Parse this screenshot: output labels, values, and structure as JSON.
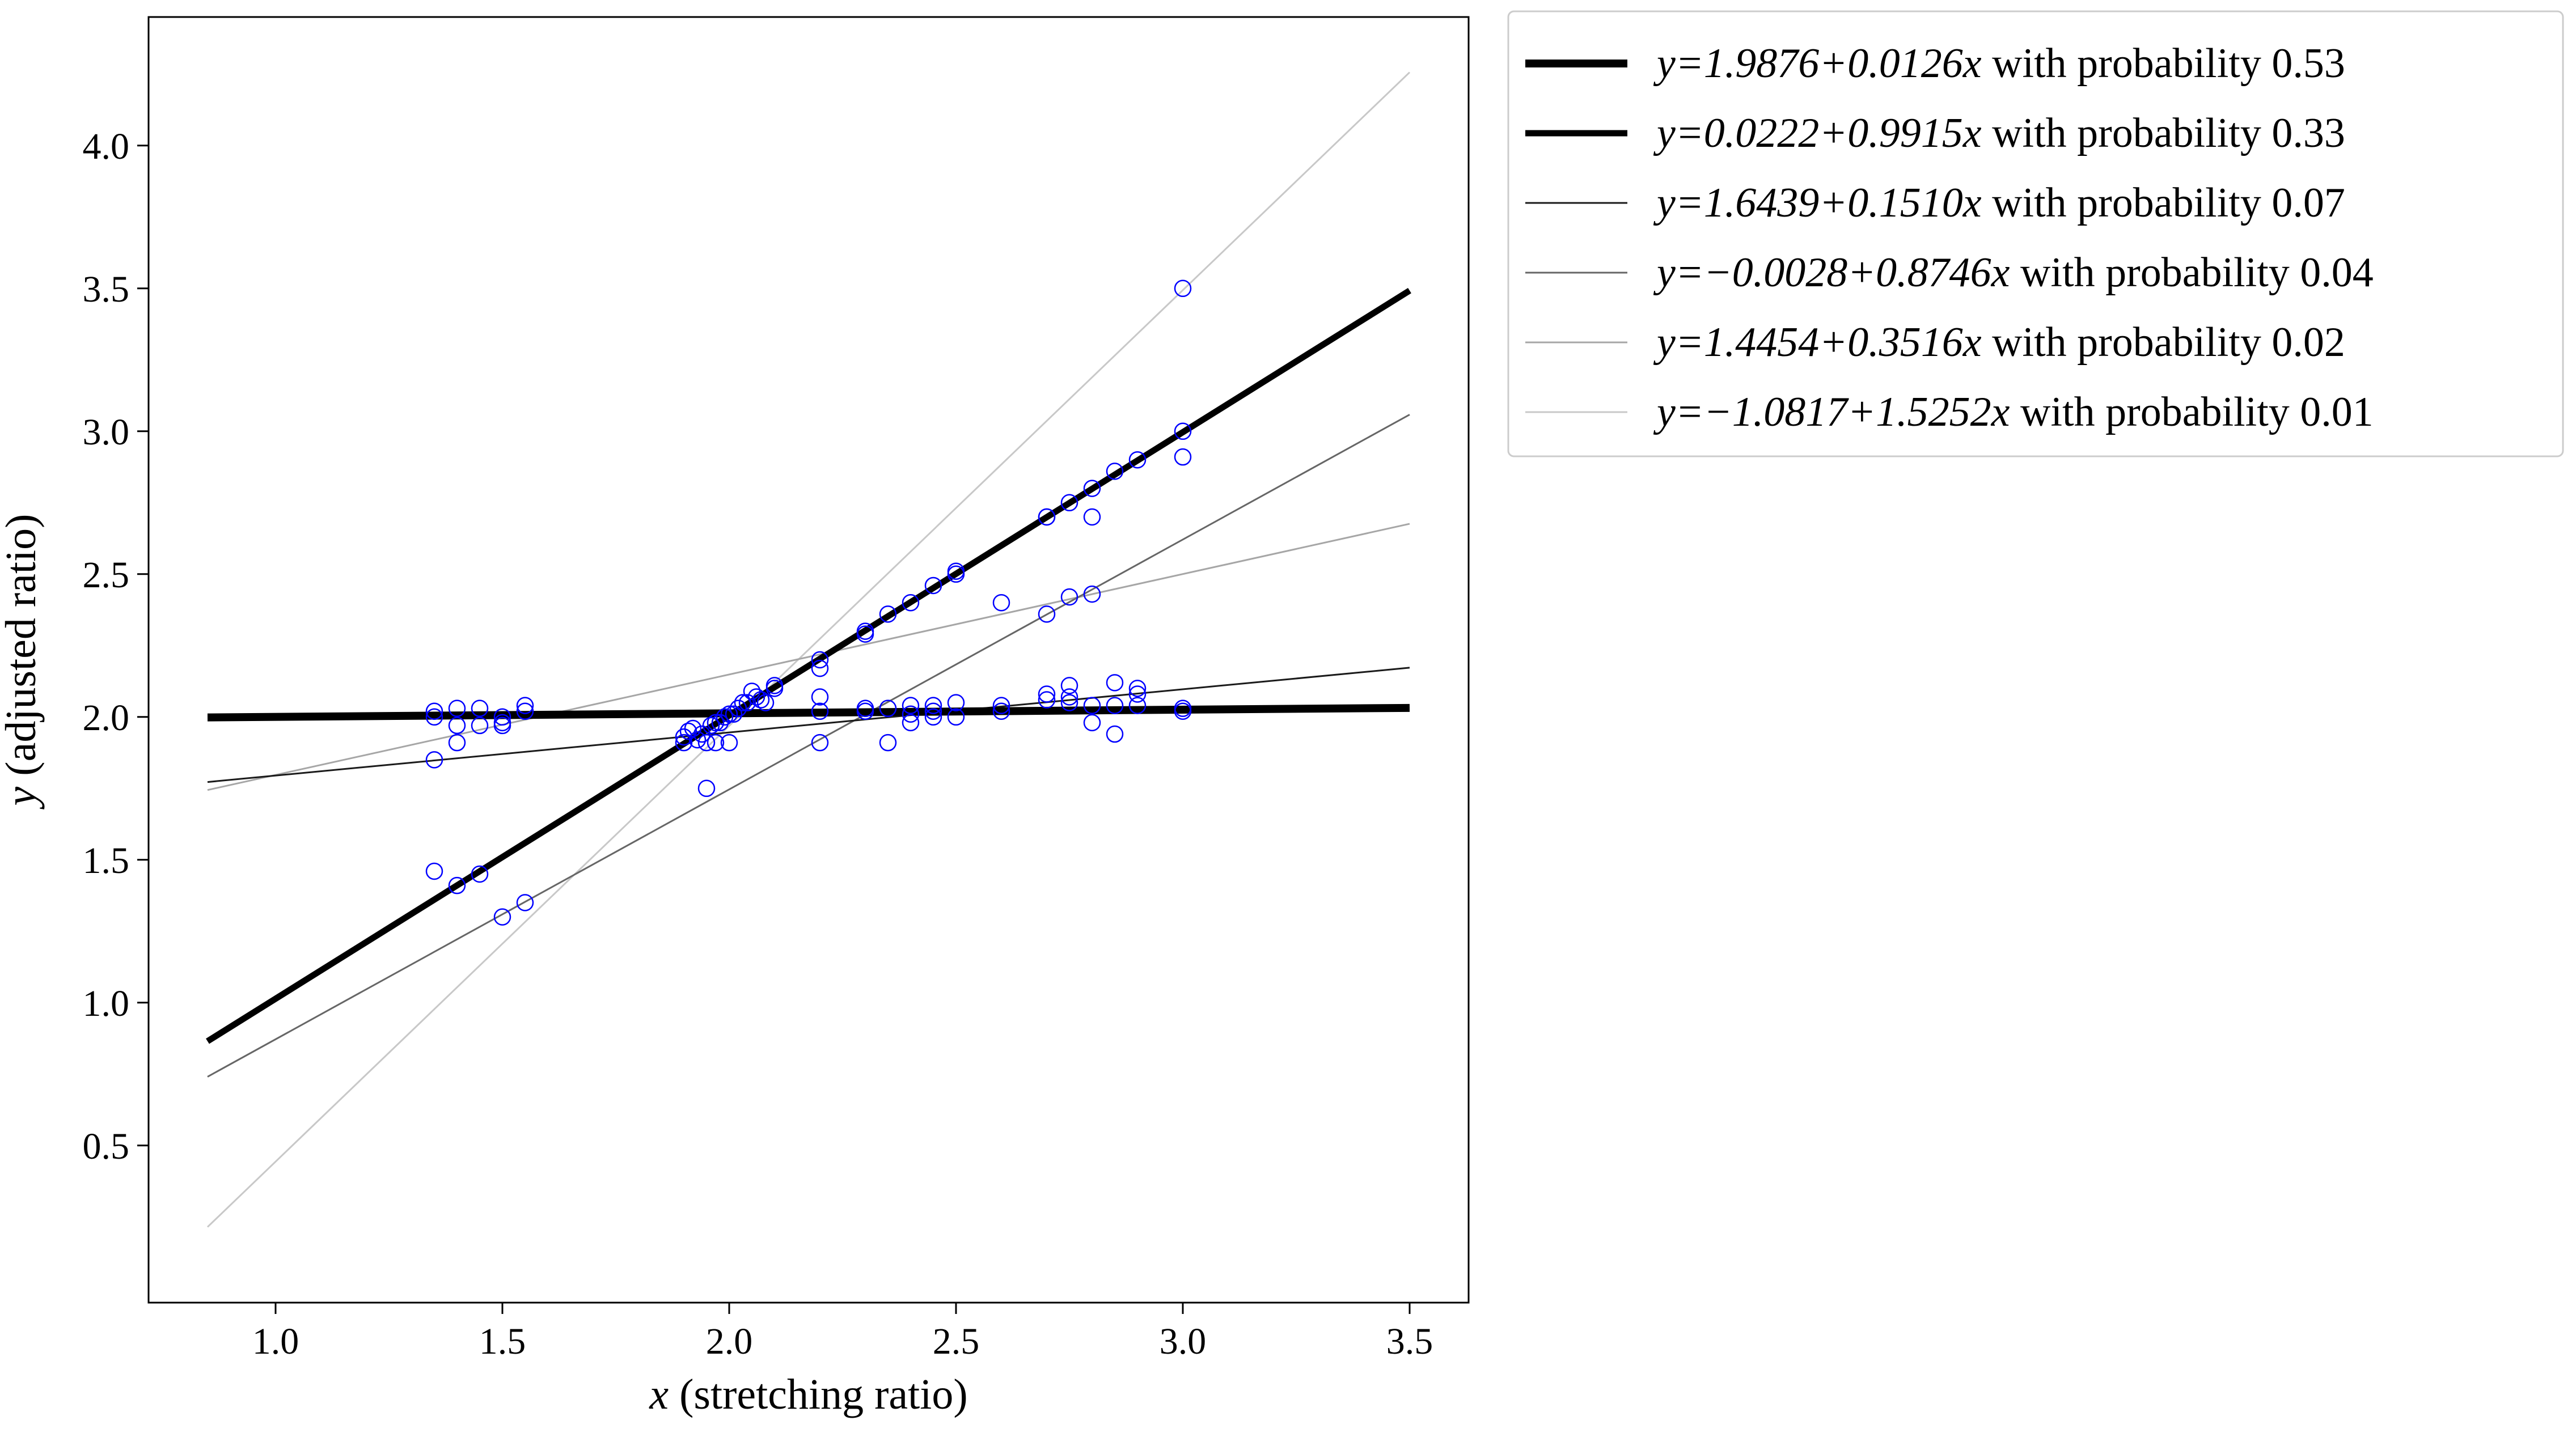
{
  "chart_data": {
    "type": "scatter",
    "xlabel": {
      "var": "x",
      "text": " (stretching ratio)"
    },
    "ylabel": {
      "var": "y",
      "text": " (adjusted ratio)"
    },
    "xlim": [
      0.72,
      3.63
    ],
    "ylim": [
      -0.05,
      4.45
    ],
    "xticks": [
      {
        "value": 1.0,
        "label": "1.0"
      },
      {
        "value": 1.5,
        "label": "1.5"
      },
      {
        "value": 2.0,
        "label": "2.0"
      },
      {
        "value": 2.5,
        "label": "2.5"
      },
      {
        "value": 3.0,
        "label": "3.0"
      },
      {
        "value": 3.5,
        "label": "3.5"
      }
    ],
    "yticks": [
      {
        "value": 0.5,
        "label": "0.5"
      },
      {
        "value": 1.0,
        "label": "1.0"
      },
      {
        "value": 1.5,
        "label": "1.5"
      },
      {
        "value": 2.0,
        "label": "2.0"
      },
      {
        "value": 2.5,
        "label": "2.5"
      },
      {
        "value": 3.0,
        "label": "3.0"
      },
      {
        "value": 3.5,
        "label": "3.5"
      },
      {
        "value": 4.0,
        "label": "4.0"
      }
    ],
    "grid": false,
    "legend_position": "outside upper-right",
    "marker_color": "#0000ff",
    "points": [
      [
        1.35,
        2.02
      ],
      [
        1.35,
        2.0
      ],
      [
        1.35,
        1.85
      ],
      [
        1.35,
        1.46
      ],
      [
        1.4,
        2.03
      ],
      [
        1.4,
        1.97
      ],
      [
        1.4,
        1.91
      ],
      [
        1.4,
        1.41
      ],
      [
        1.45,
        2.03
      ],
      [
        1.45,
        1.97
      ],
      [
        1.45,
        1.45
      ],
      [
        1.5,
        2.0
      ],
      [
        1.5,
        1.98
      ],
      [
        1.5,
        1.97
      ],
      [
        1.5,
        1.3
      ],
      [
        1.55,
        2.04
      ],
      [
        1.55,
        2.02
      ],
      [
        1.55,
        1.35
      ],
      [
        1.9,
        1.91
      ],
      [
        1.9,
        1.93
      ],
      [
        1.91,
        1.95
      ],
      [
        1.92,
        1.96
      ],
      [
        1.93,
        1.92
      ],
      [
        1.94,
        1.94
      ],
      [
        1.95,
        1.75
      ],
      [
        1.95,
        1.91
      ],
      [
        1.96,
        1.97
      ],
      [
        1.97,
        1.91
      ],
      [
        1.97,
        1.98
      ],
      [
        1.98,
        1.98
      ],
      [
        1.99,
        2.0
      ],
      [
        2.0,
        1.91
      ],
      [
        2.0,
        2.01
      ],
      [
        2.01,
        2.01
      ],
      [
        2.02,
        2.03
      ],
      [
        2.03,
        2.05
      ],
      [
        2.04,
        2.05
      ],
      [
        2.05,
        2.09
      ],
      [
        2.06,
        2.07
      ],
      [
        2.07,
        2.06
      ],
      [
        2.08,
        2.05
      ],
      [
        2.1,
        2.1
      ],
      [
        2.1,
        2.11
      ],
      [
        2.2,
        2.2
      ],
      [
        2.2,
        2.17
      ],
      [
        2.2,
        2.07
      ],
      [
        2.2,
        2.02
      ],
      [
        2.2,
        1.91
      ],
      [
        2.3,
        2.3
      ],
      [
        2.3,
        2.29
      ],
      [
        2.3,
        2.03
      ],
      [
        2.3,
        2.02
      ],
      [
        2.35,
        2.36
      ],
      [
        2.35,
        2.03
      ],
      [
        2.35,
        1.91
      ],
      [
        2.4,
        2.4
      ],
      [
        2.4,
        2.04
      ],
      [
        2.4,
        2.01
      ],
      [
        2.4,
        1.98
      ],
      [
        2.45,
        2.46
      ],
      [
        2.45,
        2.04
      ],
      [
        2.45,
        2.02
      ],
      [
        2.45,
        2.0
      ],
      [
        2.5,
        2.51
      ],
      [
        2.5,
        2.5
      ],
      [
        2.5,
        2.05
      ],
      [
        2.5,
        2.0
      ],
      [
        2.6,
        2.4
      ],
      [
        2.6,
        2.04
      ],
      [
        2.6,
        2.02
      ],
      [
        2.7,
        2.7
      ],
      [
        2.7,
        2.7
      ],
      [
        2.7,
        2.36
      ],
      [
        2.7,
        2.08
      ],
      [
        2.7,
        2.06
      ],
      [
        2.75,
        2.75
      ],
      [
        2.75,
        2.42
      ],
      [
        2.75,
        2.11
      ],
      [
        2.75,
        2.07
      ],
      [
        2.75,
        2.05
      ],
      [
        2.8,
        2.8
      ],
      [
        2.8,
        2.7
      ],
      [
        2.8,
        2.43
      ],
      [
        2.8,
        2.04
      ],
      [
        2.8,
        1.98
      ],
      [
        2.85,
        2.86
      ],
      [
        2.85,
        2.12
      ],
      [
        2.85,
        2.04
      ],
      [
        2.85,
        1.94
      ],
      [
        2.9,
        2.9
      ],
      [
        2.9,
        2.1
      ],
      [
        2.9,
        2.08
      ],
      [
        2.9,
        2.04
      ],
      [
        3.0,
        3.5
      ],
      [
        3.0,
        3.0
      ],
      [
        3.0,
        2.91
      ],
      [
        3.0,
        2.03
      ],
      [
        3.0,
        2.02
      ]
    ],
    "lines": [
      {
        "intercept": 1.9876,
        "slope": 0.0126,
        "probability": 0.53,
        "color": "#000000",
        "x_range": [
          0.85,
          3.5
        ],
        "legend": {
          "eq_a": "y=1.9876+0.0126",
          "eq_b": "x",
          "suffix": " with probability 0.53"
        }
      },
      {
        "intercept": 0.0222,
        "slope": 0.9915,
        "probability": 0.33,
        "color": "#000000",
        "x_range": [
          0.85,
          3.5
        ],
        "legend": {
          "eq_a": "y=0.0222+0.9915",
          "eq_b": "x",
          "suffix": " with probability 0.33"
        }
      },
      {
        "intercept": 1.6439,
        "slope": 0.151,
        "probability": 0.07,
        "color": "#1a1a1a",
        "x_range": [
          0.85,
          3.5
        ],
        "legend": {
          "eq_a": "y=1.6439+0.1510",
          "eq_b": "x",
          "suffix": " with probability 0.07"
        }
      },
      {
        "intercept": -0.0028,
        "slope": 0.8746,
        "probability": 0.04,
        "color": "#666666",
        "x_range": [
          0.85,
          3.5
        ],
        "legend": {
          "eq_a": "y=−0.0028+0.8746",
          "eq_b": "x",
          "suffix": " with probability 0.04"
        }
      },
      {
        "intercept": 1.4454,
        "slope": 0.3516,
        "probability": 0.02,
        "color": "#a6a6a6",
        "x_range": [
          0.85,
          3.5
        ],
        "legend": {
          "eq_a": "y=1.4454+0.3516",
          "eq_b": "x",
          "suffix": " with probability 0.02"
        }
      },
      {
        "intercept": -1.0817,
        "slope": 1.5252,
        "probability": 0.01,
        "color": "#c8c8c8",
        "x_range": [
          0.85,
          3.5
        ],
        "legend": {
          "eq_a": "y=−1.0817+1.5252",
          "eq_b": "x",
          "suffix": " with probability 0.01"
        }
      }
    ]
  }
}
